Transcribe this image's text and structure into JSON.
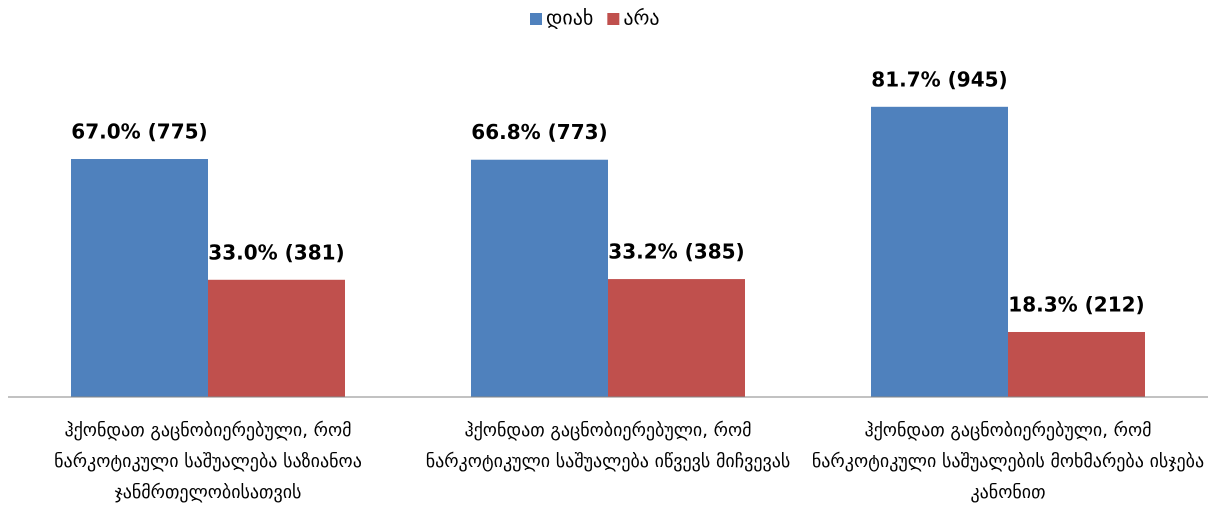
{
  "chart_data": {
    "type": "bar",
    "categories": [
      "ჰქონდათ გაცნობიერებული, რომ ნარკოტიკული საშუალება საზიანოა ჯანმრთელობისათვის",
      "ჰქონდათ გაცნობიერებული, რომ ნარკოტიკული საშუალება იწვევს მიჩვევას",
      "ჰქონდათ გაცნობიერებული, რომ ნარკოტიკული საშუალების მოხმარება ისჯება კანონით"
    ],
    "series": [
      {
        "name": "დიახ",
        "color": "#4f81bd",
        "values": [
          67.0,
          66.8,
          81.7
        ],
        "value_labels": [
          "67.0% (775)",
          "66.8% (773)",
          "81.7% (945)"
        ]
      },
      {
        "name": "არა",
        "color": "#c0504d",
        "values": [
          33.0,
          33.2,
          18.3
        ],
        "value_labels": [
          "33.0% (381)",
          "33.2% (385)",
          "18.3% (212)"
        ]
      }
    ],
    "legend": "top"
  }
}
